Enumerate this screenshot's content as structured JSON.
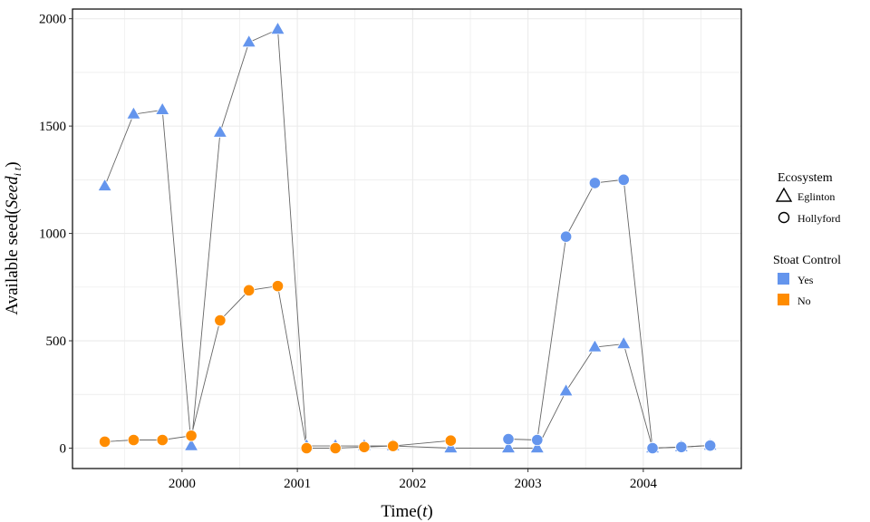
{
  "chart_data": {
    "type": "line",
    "xlabel": "Time",
    "xlabel_var": "t",
    "ylabel": "Available seed",
    "ylabel_var": "Seed",
    "ylabel_sub": "i t",
    "xlim": [
      1999.05,
      2004.85
    ],
    "ylim": [
      -95,
      2045
    ],
    "x_ticks": [
      2000,
      2001,
      2002,
      2003,
      2004
    ],
    "x_tick_labels": [
      "2000",
      "2001",
      "2002",
      "2003",
      "2004"
    ],
    "y_ticks": [
      0,
      500,
      1000,
      1500,
      2000
    ],
    "y_tick_labels": [
      "0",
      "500",
      "1000",
      "1500",
      "2000"
    ],
    "grid": true,
    "legend_position": "right",
    "legend": {
      "ecosystem_title": "Ecosystem",
      "ecosystem_items": [
        {
          "label": "Eglinton",
          "shape": "triangle"
        },
        {
          "label": "Hollyford",
          "shape": "circle"
        }
      ],
      "control_title": "Stoat Control",
      "control_items": [
        {
          "label": "Yes",
          "color": "#6495ED"
        },
        {
          "label": "No",
          "color": "#FF8C00"
        }
      ]
    },
    "series": [
      {
        "ecosystem": "Eglinton",
        "stoat_control": "Yes",
        "shape": "triangle",
        "color": "#6495ED",
        "points": [
          [
            1999.33,
            1220
          ],
          [
            1999.58,
            1555
          ],
          [
            1999.83,
            1575
          ],
          [
            2000.08,
            10
          ],
          [
            2000.33,
            1470
          ],
          [
            2000.58,
            1890
          ],
          [
            2000.83,
            1950
          ],
          [
            2001.08,
            10
          ],
          [
            2001.33,
            10
          ],
          [
            2001.58,
            10
          ],
          [
            2001.83,
            10
          ],
          [
            2002.33,
            0
          ],
          [
            2002.83,
            0
          ],
          [
            2003.08,
            0
          ],
          [
            2003.33,
            265
          ],
          [
            2003.58,
            470
          ],
          [
            2003.83,
            485
          ],
          [
            2004.08,
            0
          ],
          [
            2004.33,
            5
          ],
          [
            2004.58,
            12
          ]
        ]
      },
      {
        "ecosystem": "Hollyford",
        "stoat_control": "No",
        "shape": "circle",
        "color": "#FF8C00",
        "points": [
          [
            1999.33,
            30
          ],
          [
            1999.58,
            38
          ],
          [
            1999.83,
            38
          ],
          [
            2000.08,
            58
          ],
          [
            2000.33,
            595
          ],
          [
            2000.58,
            735
          ],
          [
            2000.83,
            755
          ],
          [
            2001.08,
            0
          ],
          [
            2001.33,
            0
          ],
          [
            2001.58,
            5
          ],
          [
            2001.83,
            10
          ],
          [
            2002.33,
            35
          ]
        ]
      },
      {
        "ecosystem": "Hollyford",
        "stoat_control": "Yes",
        "shape": "circle",
        "color": "#6495ED",
        "points": [
          [
            2002.83,
            42
          ],
          [
            2003.08,
            38
          ],
          [
            2003.33,
            985
          ],
          [
            2003.58,
            1235
          ],
          [
            2003.83,
            1250
          ],
          [
            2004.08,
            0
          ],
          [
            2004.33,
            5
          ],
          [
            2004.58,
            12
          ]
        ]
      }
    ]
  },
  "colors": {
    "line": "#666666",
    "grid": "#ebebeb",
    "frame": "#000000"
  }
}
